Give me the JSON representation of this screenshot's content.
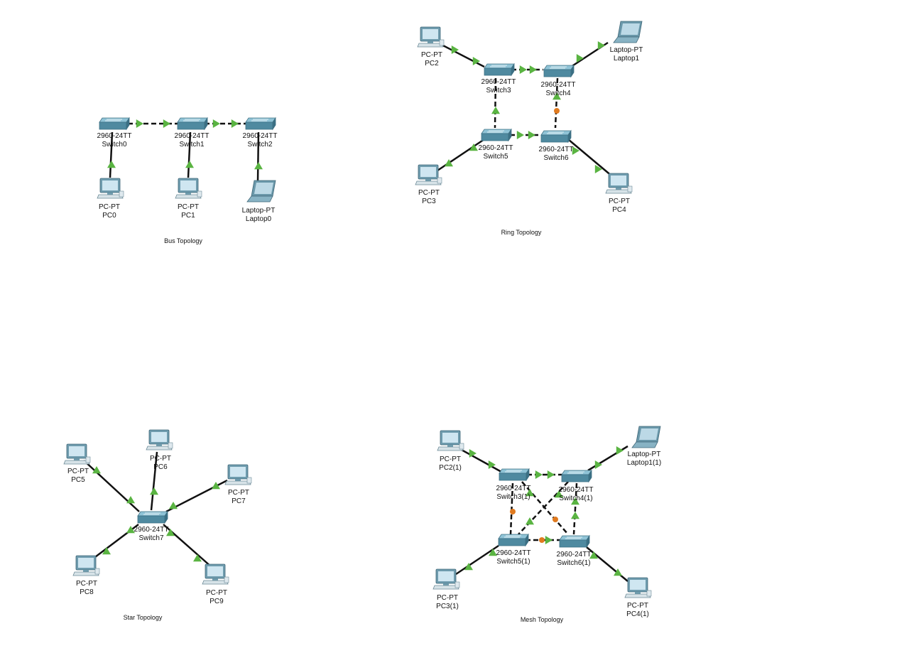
{
  "colors": {
    "background": "#ffffff",
    "cable": "#111111",
    "link_up": "#5ab442",
    "link_down": "#e07a1f",
    "device_blue": "#5b93a8",
    "screen": "#bfdcea"
  },
  "titles": {
    "bus": "Bus Topology",
    "ring": "Ring Topology",
    "star": "Star Topology",
    "mesh": "Mesh Topology"
  },
  "devices": {
    "switch0": {
      "model": "2960-24TT",
      "name": "Switch0"
    },
    "switch1": {
      "model": "2960-24TT",
      "name": "Switch1"
    },
    "switch2": {
      "model": "2960-24TT",
      "name": "Switch2"
    },
    "pc0": {
      "model": "PC-PT",
      "name": "PC0"
    },
    "pc1": {
      "model": "PC-PT",
      "name": "PC1"
    },
    "laptop0": {
      "model": "Laptop-PT",
      "name": "Laptop0"
    },
    "switch3": {
      "model": "2960-24TT",
      "name": "Switch3"
    },
    "switch4": {
      "model": "2960-24TT",
      "name": "Switch4"
    },
    "switch5": {
      "model": "2960-24TT",
      "name": "Switch5"
    },
    "switch6": {
      "model": "2960-24TT",
      "name": "Switch6"
    },
    "pc2": {
      "model": "PC-PT",
      "name": "PC2"
    },
    "laptop1": {
      "model": "Laptop-PT",
      "name": "Laptop1"
    },
    "pc3": {
      "model": "PC-PT",
      "name": "PC3"
    },
    "pc4": {
      "model": "PC-PT",
      "name": "PC4"
    },
    "switch7": {
      "model": "2960-24TT",
      "name": "Switch7"
    },
    "pc5": {
      "model": "PC-PT",
      "name": "PC5"
    },
    "pc6": {
      "model": "PC-PT",
      "name": "PC6"
    },
    "pc7": {
      "model": "PC-PT",
      "name": "PC7"
    },
    "pc8": {
      "model": "PC-PT",
      "name": "PC8"
    },
    "pc9": {
      "model": "PC-PT",
      "name": "PC9"
    },
    "switch3_1": {
      "model": "2960-24TT",
      "name": "Switch3(1)"
    },
    "switch4_1": {
      "model": "2960-24TT",
      "name": "Switch4(1)"
    },
    "switch5_1": {
      "model": "2960-24TT",
      "name": "Switch5(1)"
    },
    "switch6_1": {
      "model": "2960-24TT",
      "name": "Switch6(1)"
    },
    "pc2_1": {
      "model": "PC-PT",
      "name": "PC2(1)"
    },
    "laptop1_1": {
      "model": "Laptop-PT",
      "name": "Laptop1(1)"
    },
    "pc3_1": {
      "model": "PC-PT",
      "name": "PC3(1)"
    },
    "pc4_1": {
      "model": "PC-PT",
      "name": "PC4(1)"
    }
  }
}
